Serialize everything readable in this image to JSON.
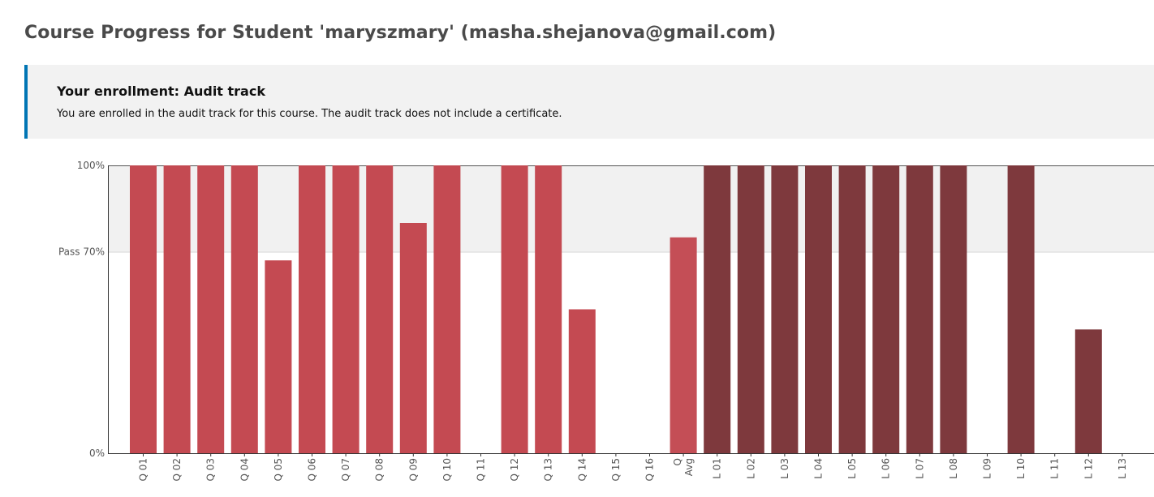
{
  "page": {
    "title": "Course Progress for Student 'maryszmary' (masha.shejanova@gmail.com)"
  },
  "enrollment": {
    "title": "Your enrollment: Audit track",
    "message": "You are enrolled in the audit track for this course. The audit track does not include a certificate.",
    "accent_color": "#0075b4"
  },
  "chart_data": {
    "type": "bar",
    "ylim": [
      0,
      100
    ],
    "y_ticks": [
      {
        "label": "100%",
        "value": 100
      },
      {
        "label": "Pass 70%",
        "value": 70
      },
      {
        "label": "0%",
        "value": 0
      }
    ],
    "pass_threshold": 70,
    "pass_band_color": "#f1f1f1",
    "colors": {
      "Q": "#c3464f",
      "Q Avg": "#c34a53",
      "L": "#7b3539"
    },
    "bars": [
      {
        "label": "Q 01",
        "value": 100,
        "group": "Q"
      },
      {
        "label": "Q 02",
        "value": 100,
        "group": "Q"
      },
      {
        "label": "Q 03",
        "value": 100,
        "group": "Q"
      },
      {
        "label": "Q 04",
        "value": 100,
        "group": "Q"
      },
      {
        "label": "Q 05",
        "value": 67,
        "group": "Q"
      },
      {
        "label": "Q 06",
        "value": 100,
        "group": "Q"
      },
      {
        "label": "Q 07",
        "value": 100,
        "group": "Q"
      },
      {
        "label": "Q 08",
        "value": 100,
        "group": "Q"
      },
      {
        "label": "Q 09",
        "value": 80,
        "group": "Q"
      },
      {
        "label": "Q 10",
        "value": 100,
        "group": "Q"
      },
      {
        "label": "Q 11",
        "value": 0,
        "group": "Q"
      },
      {
        "label": "Q 12",
        "value": 100,
        "group": "Q"
      },
      {
        "label": "Q 13",
        "value": 100,
        "group": "Q"
      },
      {
        "label": "Q 14",
        "value": 50,
        "group": "Q"
      },
      {
        "label": "Q 15",
        "value": 0,
        "group": "Q"
      },
      {
        "label": "Q 16",
        "value": 0,
        "group": "Q"
      },
      {
        "label": "Q Avg",
        "value": 75,
        "group": "Q Avg"
      },
      {
        "label": "L 01",
        "value": 100,
        "group": "L"
      },
      {
        "label": "L 02",
        "value": 100,
        "group": "L"
      },
      {
        "label": "L 03",
        "value": 100,
        "group": "L"
      },
      {
        "label": "L 04",
        "value": 100,
        "group": "L"
      },
      {
        "label": "L 05",
        "value": 100,
        "group": "L"
      },
      {
        "label": "L 06",
        "value": 100,
        "group": "L"
      },
      {
        "label": "L 07",
        "value": 100,
        "group": "L"
      },
      {
        "label": "L 08",
        "value": 100,
        "group": "L"
      },
      {
        "label": "L 09",
        "value": 0,
        "group": "L"
      },
      {
        "label": "L 10",
        "value": 100,
        "group": "L"
      },
      {
        "label": "L 11",
        "value": 0,
        "group": "L"
      },
      {
        "label": "L 12",
        "value": 43,
        "group": "L"
      },
      {
        "label": "L 13",
        "value": 0,
        "group": "L"
      }
    ]
  }
}
